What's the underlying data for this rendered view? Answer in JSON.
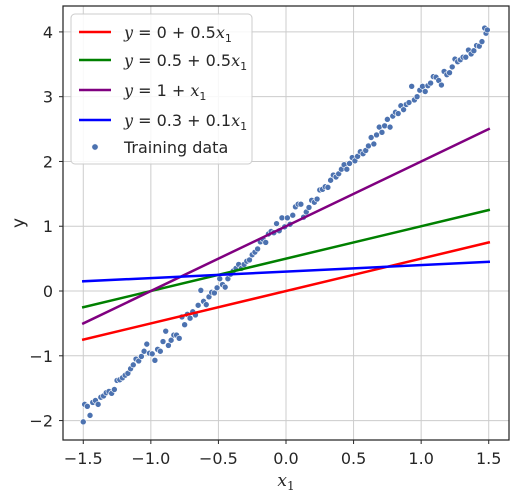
{
  "chart_data": {
    "type": "scatter",
    "xlabel": "x",
    "xlabel_sub": "1",
    "ylabel": "y",
    "xlim": [
      -1.65,
      1.65
    ],
    "ylim": [
      -2.3,
      4.4
    ],
    "xticks": [
      -1.5,
      -1.0,
      -0.5,
      0.0,
      0.5,
      1.0,
      1.5
    ],
    "xtick_labels": [
      "−1.5",
      "−1.0",
      "−0.5",
      "0.0",
      "0.5",
      "1.0",
      "1.5"
    ],
    "yticks": [
      -2,
      -1,
      0,
      1,
      2,
      3,
      4
    ],
    "ytick_labels": [
      "−2",
      "−1",
      "0",
      "1",
      "2",
      "3",
      "4"
    ],
    "grid": true,
    "legend_position": "top-left",
    "lines": [
      {
        "name": "y = 0 + 0.5x₁",
        "name_parts": [
          "y",
          " = 0 + 0.5",
          "x",
          "1"
        ],
        "intercept": 0,
        "slope": 0.5,
        "color": "#ff0000",
        "x": [
          -1.5,
          1.5
        ],
        "y": [
          -0.75,
          0.75
        ]
      },
      {
        "name": "y = 0.5 + 0.5x₁",
        "name_parts": [
          "y",
          " = 0.5 + 0.5",
          "x",
          "1"
        ],
        "intercept": 0.5,
        "slope": 0.5,
        "color": "#008000",
        "x": [
          -1.5,
          1.5
        ],
        "y": [
          -0.25,
          1.25
        ]
      },
      {
        "name": "y = 1 + x₁",
        "name_parts": [
          "y",
          " = 1 + ",
          "x",
          "1"
        ],
        "intercept": 1,
        "slope": 1,
        "color": "#800080",
        "x": [
          -1.5,
          1.5
        ],
        "y": [
          -0.5,
          2.5
        ]
      },
      {
        "name": "y = 0.3 + 0.1x₁",
        "name_parts": [
          "y",
          " = 0.3 + 0.1",
          "x",
          "1"
        ],
        "intercept": 0.3,
        "slope": 0.1,
        "color": "#0000ff",
        "x": [
          -1.5,
          1.5
        ],
        "y": [
          0.15,
          0.45
        ]
      }
    ],
    "scatter": {
      "name": "Training data",
      "color": "#4c72b0",
      "points": [
        [
          -1.5,
          -2.02
        ],
        [
          -1.49,
          -1.75
        ],
        [
          -1.47,
          -1.78
        ],
        [
          -1.45,
          -1.92
        ],
        [
          -1.43,
          -1.72
        ],
        [
          -1.41,
          -1.69
        ],
        [
          -1.39,
          -1.75
        ],
        [
          -1.37,
          -1.64
        ],
        [
          -1.35,
          -1.62
        ],
        [
          -1.33,
          -1.57
        ],
        [
          -1.31,
          -1.55
        ],
        [
          -1.29,
          -1.58
        ],
        [
          -1.27,
          -1.52
        ],
        [
          -1.25,
          -1.38
        ],
        [
          -1.23,
          -1.37
        ],
        [
          -1.21,
          -1.34
        ],
        [
          -1.19,
          -1.3
        ],
        [
          -1.17,
          -1.27
        ],
        [
          -1.15,
          -1.2
        ],
        [
          -1.13,
          -1.14
        ],
        [
          -1.11,
          -1.05
        ],
        [
          -1.09,
          -1.08
        ],
        [
          -1.07,
          -1.01
        ],
        [
          -1.05,
          -0.93
        ],
        [
          -1.03,
          -0.82
        ],
        [
          -1.01,
          -0.96
        ],
        [
          -0.99,
          -0.97
        ],
        [
          -0.97,
          -1.07
        ],
        [
          -0.95,
          -0.9
        ],
        [
          -0.93,
          -0.93
        ],
        [
          -0.91,
          -0.78
        ],
        [
          -0.89,
          -0.62
        ],
        [
          -0.87,
          -0.84
        ],
        [
          -0.85,
          -0.76
        ],
        [
          -0.83,
          -0.68
        ],
        [
          -0.81,
          -0.68
        ],
        [
          -0.79,
          -0.73
        ],
        [
          -0.77,
          -0.4
        ],
        [
          -0.75,
          -0.52
        ],
        [
          -0.73,
          -0.36
        ],
        [
          -0.71,
          -0.42
        ],
        [
          -0.69,
          -0.32
        ],
        [
          -0.67,
          -0.37
        ],
        [
          -0.65,
          -0.22
        ],
        [
          -0.63,
          0.01
        ],
        [
          -0.61,
          -0.16
        ],
        [
          -0.59,
          -0.21
        ],
        [
          -0.57,
          -0.09
        ],
        [
          -0.55,
          -0.02
        ],
        [
          -0.53,
          -0.03
        ],
        [
          -0.51,
          0.05
        ],
        [
          -0.49,
          0.19
        ],
        [
          -0.47,
          0.1
        ],
        [
          -0.45,
          0.06
        ],
        [
          -0.43,
          0.19
        ],
        [
          -0.41,
          0.26
        ],
        [
          -0.39,
          0.31
        ],
        [
          -0.37,
          0.35
        ],
        [
          -0.35,
          0.41
        ],
        [
          -0.33,
          0.35
        ],
        [
          -0.31,
          0.41
        ],
        [
          -0.29,
          0.46
        ],
        [
          -0.27,
          0.48
        ],
        [
          -0.25,
          0.56
        ],
        [
          -0.23,
          0.6
        ],
        [
          -0.21,
          0.65
        ],
        [
          -0.19,
          0.76
        ],
        [
          -0.17,
          0.8
        ],
        [
          -0.15,
          0.75
        ],
        [
          -0.13,
          0.88
        ],
        [
          -0.11,
          0.92
        ],
        [
          -0.09,
          0.9
        ],
        [
          -0.07,
          1.04
        ],
        [
          -0.05,
          0.93
        ],
        [
          -0.03,
          1.13
        ],
        [
          -0.01,
          0.99
        ],
        [
          0.01,
          1.13
        ],
        [
          0.03,
          1.03
        ],
        [
          0.05,
          1.17
        ],
        [
          0.07,
          1.3
        ],
        [
          0.09,
          1.34
        ],
        [
          0.11,
          1.34
        ],
        [
          0.13,
          1.14
        ],
        [
          0.15,
          1.22
        ],
        [
          0.17,
          1.29
        ],
        [
          0.19,
          1.4
        ],
        [
          0.21,
          1.37
        ],
        [
          0.23,
          1.42
        ],
        [
          0.25,
          1.56
        ],
        [
          0.27,
          1.57
        ],
        [
          0.29,
          1.61
        ],
        [
          0.31,
          1.6
        ],
        [
          0.33,
          1.71
        ],
        [
          0.35,
          1.79
        ],
        [
          0.37,
          1.76
        ],
        [
          0.39,
          1.81
        ],
        [
          0.41,
          1.88
        ],
        [
          0.43,
          1.95
        ],
        [
          0.45,
          1.88
        ],
        [
          0.47,
          1.97
        ],
        [
          0.49,
          2.06
        ],
        [
          0.51,
          2.01
        ],
        [
          0.53,
          2.08
        ],
        [
          0.55,
          2.15
        ],
        [
          0.57,
          2.12
        ],
        [
          0.59,
          2.17
        ],
        [
          0.61,
          2.24
        ],
        [
          0.63,
          2.37
        ],
        [
          0.65,
          2.27
        ],
        [
          0.67,
          2.41
        ],
        [
          0.69,
          2.53
        ],
        [
          0.71,
          2.45
        ],
        [
          0.73,
          2.55
        ],
        [
          0.75,
          2.65
        ],
        [
          0.77,
          2.53
        ],
        [
          0.79,
          2.7
        ],
        [
          0.81,
          2.76
        ],
        [
          0.83,
          2.74
        ],
        [
          0.85,
          2.86
        ],
        [
          0.87,
          2.8
        ],
        [
          0.89,
          2.88
        ],
        [
          0.91,
          2.91
        ],
        [
          0.93,
          3.16
        ],
        [
          0.95,
          2.95
        ],
        [
          0.97,
          3.0
        ],
        [
          0.99,
          3.1
        ],
        [
          1.01,
          3.16
        ],
        [
          1.03,
          3.08
        ],
        [
          1.05,
          3.17
        ],
        [
          1.07,
          3.21
        ],
        [
          1.09,
          3.31
        ],
        [
          1.11,
          3.3
        ],
        [
          1.13,
          3.25
        ],
        [
          1.15,
          3.18
        ],
        [
          1.17,
          3.39
        ],
        [
          1.19,
          3.34
        ],
        [
          1.21,
          3.37
        ],
        [
          1.23,
          3.46
        ],
        [
          1.25,
          3.58
        ],
        [
          1.27,
          3.54
        ],
        [
          1.29,
          3.57
        ],
        [
          1.31,
          3.61
        ],
        [
          1.33,
          3.61
        ],
        [
          1.35,
          3.72
        ],
        [
          1.37,
          3.66
        ],
        [
          1.39,
          3.71
        ],
        [
          1.41,
          3.79
        ],
        [
          1.43,
          3.78
        ],
        [
          1.45,
          3.85
        ],
        [
          1.47,
          4.06
        ],
        [
          1.48,
          3.98
        ],
        [
          1.49,
          4.03
        ]
      ]
    }
  }
}
